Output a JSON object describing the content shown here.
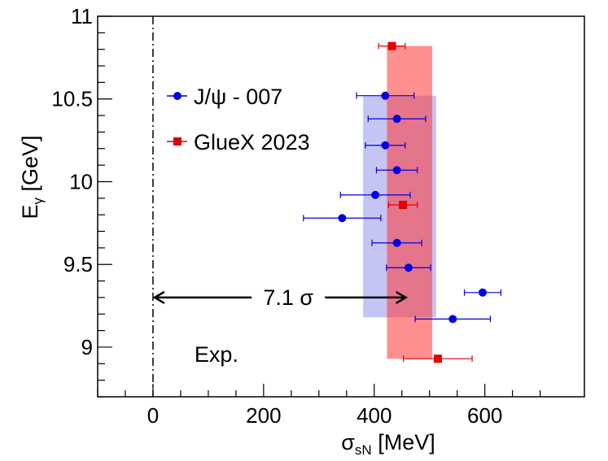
{
  "chart_data": {
    "type": "scatter",
    "title": "",
    "xlabel": {
      "main": "σ",
      "sub": "sN",
      "rest": " [MeV]"
    },
    "ylabel": {
      "main": "E",
      "sub": "γ",
      "rest": " [GeV]"
    },
    "xlim": [
      -100,
      780
    ],
    "ylim": [
      8.7,
      11.0
    ],
    "xticks": [
      {
        "value": 0,
        "label": "0"
      },
      {
        "value": 200,
        "label": "200"
      },
      {
        "value": 400,
        "label": "400"
      },
      {
        "value": 600,
        "label": "600"
      }
    ],
    "yticks": [
      {
        "value": 9.0,
        "label": "9"
      },
      {
        "value": 9.5,
        "label": "9.5"
      },
      {
        "value": 10.0,
        "label": "10"
      },
      {
        "value": 10.5,
        "label": "10.5"
      },
      {
        "value": 11.0,
        "label": "11"
      }
    ],
    "series": [
      {
        "name": "J/ψ - 007",
        "color": "#0000e0",
        "marker": "circle",
        "points": [
          {
            "x": 420,
            "y": 10.52,
            "xerr": 52
          },
          {
            "x": 441,
            "y": 10.38,
            "xerr": 52
          },
          {
            "x": 420,
            "y": 10.22,
            "xerr": 36
          },
          {
            "x": 441,
            "y": 10.07,
            "xerr": 37
          },
          {
            "x": 402,
            "y": 9.92,
            "xerr": 63
          },
          {
            "x": 342,
            "y": 9.78,
            "xerr": 70
          },
          {
            "x": 441,
            "y": 9.63,
            "xerr": 45
          },
          {
            "x": 462,
            "y": 9.48,
            "xerr": 40
          },
          {
            "x": 596,
            "y": 9.33,
            "xerr": 33
          },
          {
            "x": 542,
            "y": 9.17,
            "xerr": 68
          }
        ],
        "band": {
          "x": [
            380,
            512
          ],
          "y": [
            9.18,
            10.52
          ],
          "color": "#7f7fe6",
          "opacity": 0.45
        }
      },
      {
        "name": "GlueX 2023",
        "color": "#e00000",
        "marker": "square",
        "points": [
          {
            "x": 432,
            "y": 10.82,
            "xerr": 24
          },
          {
            "x": 452,
            "y": 9.86,
            "xerr": 26
          },
          {
            "x": 515,
            "y": 8.93,
            "xerr": 62
          }
        ],
        "band": {
          "x": [
            423,
            505
          ],
          "y": [
            8.93,
            10.82
          ],
          "color": "#ff3333",
          "opacity": 0.55
        }
      }
    ],
    "vline": {
      "x": 0,
      "style": "dash-dot"
    },
    "arrow": {
      "x1": 0,
      "x2": 460,
      "y": 9.3,
      "label": "7.1 σ"
    },
    "annotation": {
      "text": "Exp.",
      "x": 200,
      "y": 8.98
    },
    "legend": {
      "placement": "top-left"
    },
    "grid": false
  }
}
